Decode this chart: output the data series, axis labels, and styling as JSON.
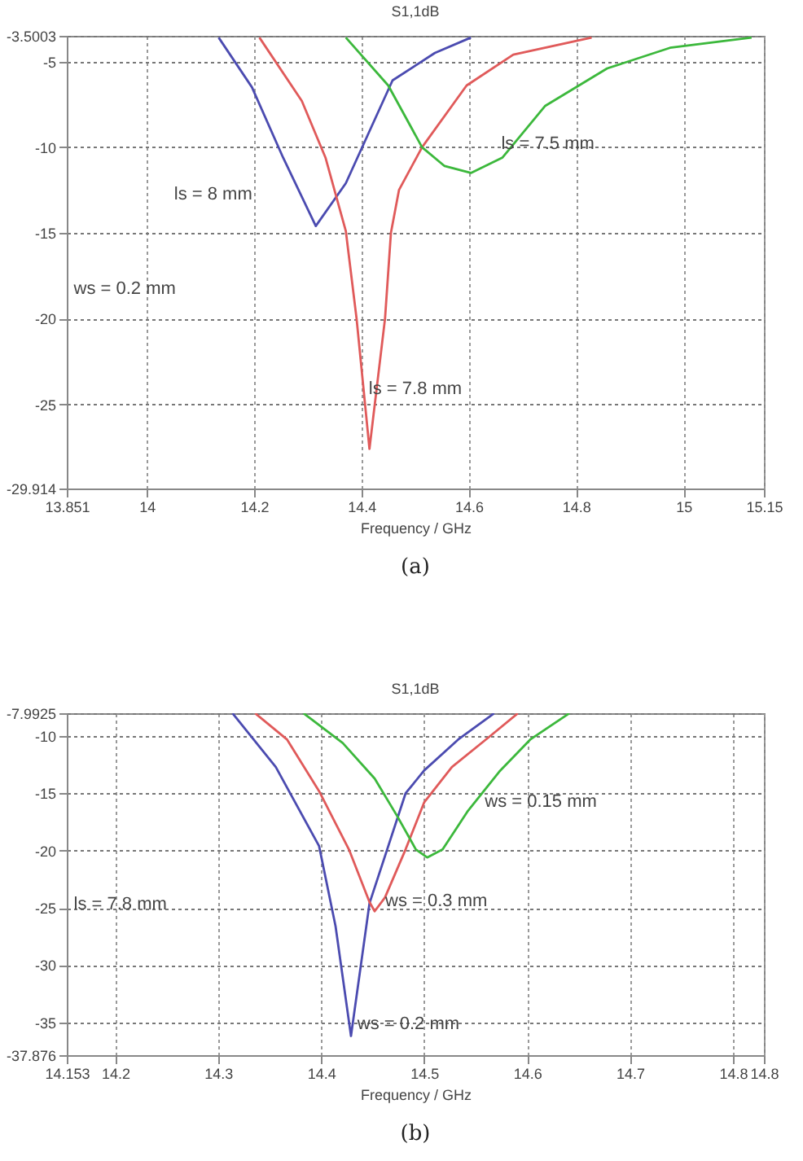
{
  "chart_data": [
    {
      "type": "line",
      "title": "S1,1dB",
      "xlabel": "Frequency / GHz",
      "xlim": [
        13.851,
        15.15
      ],
      "ylim": [
        -29.914,
        -3.5003
      ],
      "xticks": [
        13.851,
        14,
        14.2,
        14.4,
        14.6,
        14.8,
        15,
        15.15
      ],
      "yticks": [
        -29.914,
        -25,
        -20,
        -15,
        -10,
        -5,
        -3.5003
      ],
      "grid": true,
      "line_style": "solid",
      "series": [
        {
          "color": "#4b4bb0",
          "x": [
            14.134,
            14.196,
            14.254,
            14.315,
            14.371,
            14.458,
            14.537,
            14.604
          ],
          "values": [
            -3.6,
            -6.5,
            -10.6,
            -14.6,
            -12.1,
            -6.1,
            -4.5,
            -3.6
          ]
        },
        {
          "color": "#e05a5a",
          "x": [
            14.21,
            14.289,
            14.333,
            14.371,
            14.391,
            14.415,
            14.444,
            14.455,
            14.47,
            14.513,
            14.596,
            14.683,
            14.829
          ],
          "values": [
            -3.6,
            -7.3,
            -10.6,
            -14.9,
            -20,
            -27.6,
            -20,
            -15,
            -12.5,
            -10,
            -6.4,
            -4.6,
            -3.6
          ]
        },
        {
          "color": "#3cb83c",
          "x": [
            14.371,
            14.45,
            14.513,
            14.555,
            14.604,
            14.663,
            14.742,
            14.858,
            14.975,
            15.127
          ],
          "values": [
            -3.6,
            -6.4,
            -10,
            -11.1,
            -11.5,
            -10.6,
            -7.6,
            -5.4,
            -4.2,
            -3.6
          ]
        }
      ],
      "annotations": [
        "ws = 0.2 mm",
        "(a)",
        "ls = 8 mm",
        "ls = 7.5 mm",
        "ls = 7.8 mm"
      ]
    },
    {
      "type": "line",
      "title": "S1,1dB",
      "xlabel": "Frequency / GHz",
      "xlim": [
        14.153,
        14.83
      ],
      "ylim": [
        -37.876,
        -7.9925
      ],
      "xticks": [
        14.153,
        14.2,
        14.3,
        14.4,
        14.5,
        14.6,
        14.7,
        14.8,
        {
          "value": 14.83,
          "label": "14.8"
        }
      ],
      "yticks": [
        -37.876,
        -35,
        -30,
        -25,
        -20,
        -15,
        -10,
        -7.9925
      ],
      "grid": true,
      "line_style": "solid",
      "series": [
        {
          "color": "#4b4bb0",
          "x": [
            14.314,
            14.356,
            14.398,
            14.414,
            14.429,
            14.447,
            14.482,
            14.5,
            14.533,
            14.568
          ],
          "values": [
            -8,
            -12.7,
            -19.6,
            -26.6,
            -36.2,
            -24.6,
            -15,
            -13,
            -10.3,
            -8
          ]
        },
        {
          "color": "#e05a5a",
          "x": [
            14.336,
            14.367,
            14.398,
            14.427,
            14.447,
            14.452,
            14.462,
            14.482,
            14.5,
            14.527,
            14.564,
            14.591
          ],
          "values": [
            -8,
            -10.3,
            -14.8,
            -19.9,
            -24.5,
            -25.3,
            -24.1,
            -19.9,
            -15.8,
            -12.7,
            -10,
            -8
          ]
        },
        {
          "color": "#3cb83c",
          "x": [
            14.383,
            14.421,
            14.452,
            14.474,
            14.492,
            14.503,
            14.518,
            14.542,
            14.573,
            14.603,
            14.641
          ],
          "values": [
            -8,
            -10.6,
            -13.7,
            -17,
            -19.9,
            -20.6,
            -19.9,
            -16.6,
            -13.1,
            -10.3,
            -8
          ]
        }
      ],
      "annotations": [
        "ls = 7.8 mm",
        "(b)",
        "ws = 0.15 mm",
        "ws = 0.3 mm",
        "ws = 0.2 mm"
      ]
    }
  ]
}
